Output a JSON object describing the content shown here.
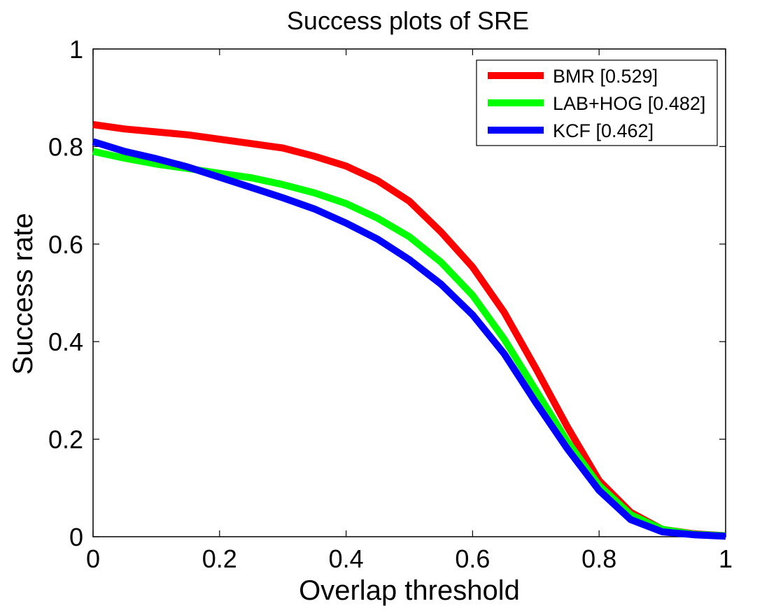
{
  "chart_data": {
    "type": "line",
    "title": "Success plots of SRE",
    "xlabel": "Overlap threshold",
    "ylabel": "Success rate",
    "xlim": [
      0,
      1
    ],
    "ylim": [
      0,
      1
    ],
    "xticks": [
      0,
      0.2,
      0.4,
      0.6,
      0.8,
      1
    ],
    "yticks": [
      0,
      0.2,
      0.4,
      0.6,
      0.8,
      1
    ],
    "xtick_labels": [
      "0",
      "0.2",
      "0.4",
      "0.6",
      "0.8",
      "1"
    ],
    "ytick_labels": [
      "0",
      "0.2",
      "0.4",
      "0.6",
      "0.8",
      "1"
    ],
    "grid": false,
    "legend_position": "top-right",
    "x": [
      0,
      0.05,
      0.1,
      0.15,
      0.2,
      0.25,
      0.3,
      0.35,
      0.4,
      0.45,
      0.5,
      0.55,
      0.6,
      0.65,
      0.7,
      0.75,
      0.8,
      0.85,
      0.9,
      0.95,
      1
    ],
    "series": [
      {
        "name": "BMR [0.529]",
        "color": "#ff0000",
        "values": [
          0.845,
          0.836,
          0.83,
          0.824,
          0.815,
          0.806,
          0.797,
          0.78,
          0.76,
          0.73,
          0.688,
          0.625,
          0.553,
          0.46,
          0.345,
          0.225,
          0.115,
          0.05,
          0.015,
          0.006,
          0.002
        ]
      },
      {
        "name": "LAB+HOG [0.482]",
        "color": "#00ff00",
        "values": [
          0.79,
          0.776,
          0.764,
          0.755,
          0.745,
          0.736,
          0.722,
          0.705,
          0.683,
          0.653,
          0.615,
          0.563,
          0.495,
          0.405,
          0.3,
          0.195,
          0.105,
          0.045,
          0.015,
          0.005,
          0.002
        ]
      },
      {
        "name": "KCF [0.462]",
        "color": "#0000ff",
        "values": [
          0.81,
          0.79,
          0.775,
          0.758,
          0.737,
          0.716,
          0.695,
          0.672,
          0.643,
          0.61,
          0.568,
          0.518,
          0.455,
          0.375,
          0.275,
          0.18,
          0.095,
          0.035,
          0.01,
          0.004,
          0.001
        ]
      }
    ]
  }
}
